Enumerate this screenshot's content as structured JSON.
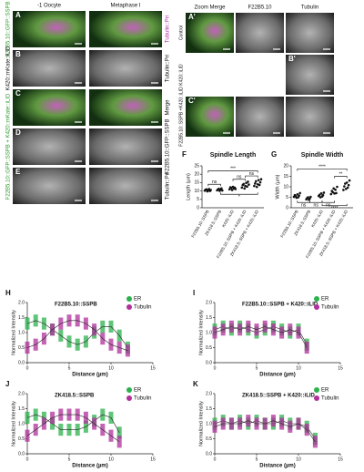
{
  "figure": {
    "columns": [
      "-1 Oocyte",
      "Metaphase I"
    ],
    "panel_labels": [
      "A",
      "B",
      "C",
      "D",
      "E"
    ],
    "left_labels": [
      "F22B5.10::GFP::SSPB",
      "K420::mKate::iLID",
      "F22B5.10::GFP::SSPB + K420::mKate::iLID"
    ],
    "right_labels": [
      "Tubulin::Pri",
      "Tubulin::Pri",
      "Merge",
      "F22B5.10::GFP::SSPB",
      "Tubulin::Pri"
    ],
    "zoom": {
      "columns": [
        "Zoom Merge",
        "F22B5.10",
        "Tubulin"
      ],
      "rows": [
        "Control",
        "K420::iLID",
        "F22B5.10::SSPB +K420::iLID"
      ],
      "panel_labels": [
        "A'",
        "B'",
        "C'"
      ]
    }
  },
  "chart_data": [
    {
      "type": "strip",
      "panel": "F",
      "title": "Spindle Length",
      "y_label": "Length (µm)",
      "categories": [
        "F22B5.10::SSPB",
        "ZK418.5::SSPB",
        "K420::iLID",
        "F22B5.10::SSPB + K420::iLID",
        "ZK418.5::SSPB + K420::iLID"
      ],
      "values": [
        [
          10.2,
          10.8,
          11.0,
          9.8,
          10.5,
          11.2,
          10.0,
          10.6
        ],
        [
          10.4,
          10.9,
          11.3,
          10.1,
          10.7,
          11.5,
          10.3
        ],
        [
          11.0,
          12.2,
          11.8,
          10.6,
          12.5,
          11.4,
          12.0,
          11.2
        ],
        [
          12.0,
          13.5,
          14.2,
          11.5,
          13.0,
          14.8,
          12.6,
          15.5,
          13.8
        ],
        [
          13.0,
          14.5,
          15.8,
          12.4,
          14.0,
          16.5,
          13.6,
          15.2,
          17.0
        ]
      ],
      "color": "#111111",
      "ylim": [
        0,
        25
      ],
      "yticks": [
        0,
        5,
        10,
        15,
        20,
        25
      ],
      "annotations": [
        "***",
        "ns",
        "ns",
        "ns",
        "*"
      ]
    },
    {
      "type": "strip",
      "panel": "G",
      "title": "Spindle Width",
      "y_label": "Width (µm)",
      "categories": [
        "F22B5.10::SSPB",
        "ZK418.5::SSPB",
        "K420::iLID",
        "F22B5.10::SSPB + K420::iLID",
        "ZK418.5::SSPB + K420::iLID"
      ],
      "values": [
        [
          5.2,
          6.0,
          5.5,
          4.8,
          6.4,
          5.0,
          5.8,
          7.0
        ],
        [
          4.0,
          4.6,
          5.0,
          3.8,
          4.4,
          5.2
        ],
        [
          5.6,
          6.2,
          5.0,
          6.8,
          5.4,
          6.0,
          7.2
        ],
        [
          6.5,
          8.0,
          7.4,
          9.2,
          6.8,
          8.6,
          7.0,
          10.0
        ],
        [
          8.5,
          10.2,
          11.5,
          9.0,
          12.0,
          9.6,
          10.8,
          13.0
        ]
      ],
      "color": "#111111",
      "ylim": [
        0,
        20
      ],
      "yticks": [
        0,
        5,
        10,
        15,
        20
      ],
      "annotations": [
        "****",
        "**",
        "ns",
        "ns",
        "ns",
        "****"
      ]
    },
    {
      "type": "line",
      "panel": "H",
      "title": "F22B5.10::SSPB",
      "x_label": "Distance (µm)",
      "y_label": "Normalized Intensity",
      "x": [
        0,
        1,
        2,
        3,
        4,
        5,
        6,
        7,
        8,
        9,
        10,
        11,
        12
      ],
      "xlim": [
        0,
        15
      ],
      "xticks": [
        0,
        5,
        10,
        15
      ],
      "ylim": [
        0,
        2
      ],
      "yticks": [
        {
          "value": 0,
          "label": "0.0"
        },
        {
          "value": 0.5,
          "label": "0.5"
        },
        {
          "value": 1,
          "label": "1.0"
        },
        {
          "value": 1.5,
          "label": "1.5"
        },
        {
          "value": 2,
          "label": "2.0"
        }
      ],
      "series": [
        {
          "name": "ER",
          "color": "#2bb24c",
          "values": [
            1.3,
            1.4,
            1.3,
            1.1,
            0.9,
            0.7,
            0.6,
            0.7,
            1.0,
            1.2,
            1.2,
            0.9,
            0.5
          ],
          "errors": [
            0.2,
            0.2,
            0.2,
            0.2,
            0.2,
            0.2,
            0.2,
            0.2,
            0.2,
            0.2,
            0.2,
            0.2,
            0.2
          ]
        },
        {
          "name": "Tubulin",
          "color": "#b0309c",
          "values": [
            0.5,
            0.6,
            0.8,
            1.1,
            1.3,
            1.4,
            1.4,
            1.3,
            1.1,
            0.8,
            0.6,
            0.5,
            0.4
          ],
          "errors": [
            0.2,
            0.2,
            0.2,
            0.2,
            0.2,
            0.2,
            0.2,
            0.2,
            0.2,
            0.2,
            0.2,
            0.2,
            0.2
          ]
        }
      ]
    },
    {
      "type": "line",
      "panel": "I",
      "title": "F22B5.10::SSPB + K420::iLID",
      "x_label": "Distance (µm)",
      "y_label": "Normalized Intensity",
      "x": [
        0,
        1,
        2,
        3,
        4,
        5,
        6,
        7,
        8,
        9,
        10,
        11
      ],
      "xlim": [
        0,
        15
      ],
      "xticks": [
        0,
        5,
        10,
        15
      ],
      "ylim": [
        0,
        2
      ],
      "yticks": [
        {
          "value": 0,
          "label": "0.0"
        },
        {
          "value": 0.5,
          "label": "0.5"
        },
        {
          "value": 1,
          "label": "1.0"
        },
        {
          "value": 1.5,
          "label": "1.5"
        },
        {
          "value": 2,
          "label": "2.0"
        }
      ],
      "series": [
        {
          "name": "ER",
          "color": "#2bb24c",
          "values": [
            1.1,
            1.2,
            1.1,
            1.2,
            1.1,
            1.0,
            1.1,
            1.2,
            1.1,
            1.0,
            1.1,
            0.6
          ],
          "errors": [
            0.2,
            0.2,
            0.2,
            0.2,
            0.2,
            0.2,
            0.2,
            0.2,
            0.2,
            0.2,
            0.2,
            0.2
          ]
        },
        {
          "name": "Tubulin",
          "color": "#b0309c",
          "values": [
            1.0,
            1.1,
            1.2,
            1.1,
            1.2,
            1.1,
            1.2,
            1.1,
            1.0,
            1.1,
            1.0,
            0.5
          ],
          "errors": [
            0.2,
            0.2,
            0.2,
            0.2,
            0.2,
            0.2,
            0.2,
            0.2,
            0.2,
            0.2,
            0.2,
            0.2
          ]
        }
      ]
    },
    {
      "type": "line",
      "panel": "J",
      "title": "ZK418.5::SSPB",
      "x_label": "Distance (µm)",
      "y_label": "Normalized Intensity",
      "x": [
        0,
        1,
        2,
        3,
        4,
        5,
        6,
        7,
        8,
        9,
        10,
        11
      ],
      "xlim": [
        0,
        15
      ],
      "xticks": [
        0,
        5,
        10,
        15
      ],
      "ylim": [
        0,
        2
      ],
      "yticks": [
        {
          "value": 0,
          "label": "0.0"
        },
        {
          "value": 0.5,
          "label": "0.5"
        },
        {
          "value": 1,
          "label": "1.0"
        },
        {
          "value": 1.5,
          "label": "1.5"
        },
        {
          "value": 2,
          "label": "2.0"
        }
      ],
      "series": [
        {
          "name": "ER",
          "color": "#2bb24c",
          "values": [
            1.2,
            1.3,
            1.2,
            1.0,
            0.8,
            0.8,
            0.8,
            0.9,
            1.1,
            1.3,
            1.2,
            0.7
          ],
          "errors": [
            0.2,
            0.2,
            0.2,
            0.2,
            0.2,
            0.2,
            0.2,
            0.2,
            0.2,
            0.2,
            0.2,
            0.2
          ]
        },
        {
          "name": "Tubulin",
          "color": "#b0309c",
          "values": [
            0.6,
            0.8,
            1.0,
            1.2,
            1.3,
            1.3,
            1.3,
            1.2,
            1.0,
            0.8,
            0.6,
            0.4
          ],
          "errors": [
            0.2,
            0.2,
            0.2,
            0.2,
            0.2,
            0.2,
            0.2,
            0.2,
            0.2,
            0.2,
            0.2,
            0.2
          ]
        }
      ]
    },
    {
      "type": "line",
      "panel": "K",
      "title": "ZK418.5::SSPB + K420::iLID",
      "x_label": "Distance (µm)",
      "y_label": "Normalized Intensity",
      "x": [
        0,
        1,
        2,
        3,
        4,
        5,
        6,
        7,
        8,
        9,
        10,
        11,
        12
      ],
      "xlim": [
        0,
        15
      ],
      "xticks": [
        0,
        5,
        10,
        15
      ],
      "ylim": [
        0,
        2
      ],
      "yticks": [
        {
          "value": 0,
          "label": "0.0"
        },
        {
          "value": 0.5,
          "label": "0.5"
        },
        {
          "value": 1,
          "label": "1.0"
        },
        {
          "value": 1.5,
          "label": "1.5"
        },
        {
          "value": 2,
          "label": "2.0"
        }
      ],
      "series": [
        {
          "name": "ER",
          "color": "#2bb24c",
          "values": [
            1.0,
            1.1,
            1.0,
            1.1,
            1.0,
            1.1,
            1.0,
            1.0,
            1.1,
            1.0,
            1.0,
            0.9,
            0.5
          ],
          "errors": [
            0.2,
            0.2,
            0.2,
            0.2,
            0.2,
            0.2,
            0.2,
            0.2,
            0.2,
            0.2,
            0.2,
            0.2,
            0.2
          ]
        },
        {
          "name": "Tubulin",
          "color": "#b0309c",
          "values": [
            0.9,
            1.0,
            1.0,
            1.0,
            1.1,
            1.0,
            1.0,
            1.1,
            1.0,
            0.9,
            1.0,
            0.8,
            0.4
          ],
          "errors": [
            0.2,
            0.2,
            0.2,
            0.2,
            0.2,
            0.2,
            0.2,
            0.2,
            0.2,
            0.2,
            0.2,
            0.2,
            0.2
          ]
        }
      ]
    }
  ]
}
